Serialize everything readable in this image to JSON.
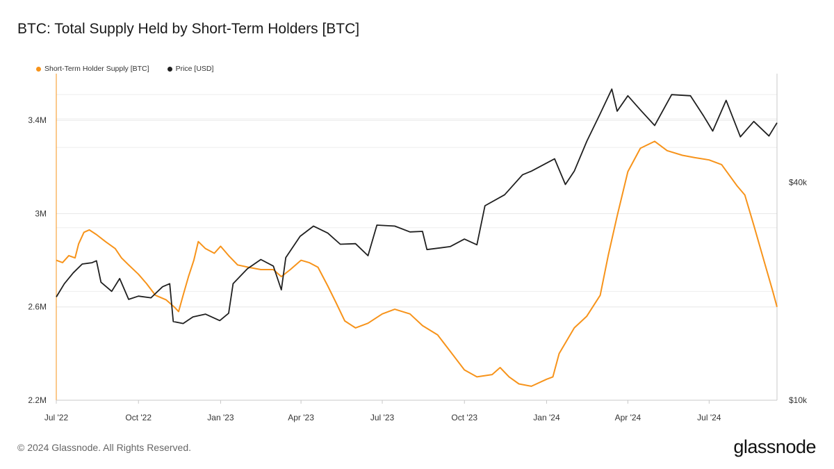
{
  "title": "BTC: Total Supply Held by Short-Term Holders [BTC]",
  "footer": "© 2024 Glassnode. All Rights Reserved.",
  "brand": "glassnode",
  "colors": {
    "supply": "#f7931a",
    "price": "#1f1f1f",
    "grid": "#e6e6e6",
    "axis": "#c8c8c8"
  },
  "chart_data": {
    "type": "line",
    "title": "BTC: Total Supply Held by Short-Term Holders [BTC]",
    "legend_placement": "top-left",
    "grid": true,
    "x_ticks": [
      "Jul '22",
      "Oct '22",
      "Jan '23",
      "Apr '23",
      "Jul '23",
      "Oct '23",
      "Jan '24",
      "Apr '24",
      "Jul '24"
    ],
    "x_range": [
      "2022-07-01",
      "2024-09-15"
    ],
    "y_left": {
      "ticks": [
        "2.2M",
        "2.6M",
        "3M",
        "3.4M"
      ],
      "tick_values": [
        2200000,
        2600000,
        3000000,
        3400000
      ],
      "range": [
        2200000,
        3600000
      ]
    },
    "y_right": {
      "ticks": [
        "$10k",
        "$40k"
      ],
      "tick_values": [
        10000,
        40000
      ],
      "scale": "log",
      "range": [
        10000,
        80000
      ]
    },
    "series": [
      {
        "name": "Short-Term Holder Supply [BTC]",
        "axis": "left",
        "points": [
          [
            "2022-07-01",
            2800000
          ],
          [
            "2022-07-08",
            2790000
          ],
          [
            "2022-07-15",
            2820000
          ],
          [
            "2022-07-22",
            2810000
          ],
          [
            "2022-07-26",
            2870000
          ],
          [
            "2022-08-01",
            2920000
          ],
          [
            "2022-08-07",
            2930000
          ],
          [
            "2022-08-15",
            2910000
          ],
          [
            "2022-08-25",
            2880000
          ],
          [
            "2022-09-05",
            2850000
          ],
          [
            "2022-09-12",
            2810000
          ],
          [
            "2022-09-20",
            2780000
          ],
          [
            "2022-10-01",
            2740000
          ],
          [
            "2022-10-10",
            2700000
          ],
          [
            "2022-10-20",
            2650000
          ],
          [
            "2022-11-01",
            2630000
          ],
          [
            "2022-11-10",
            2600000
          ],
          [
            "2022-11-15",
            2580000
          ],
          [
            "2022-11-20",
            2650000
          ],
          [
            "2022-11-26",
            2730000
          ],
          [
            "2022-12-02",
            2800000
          ],
          [
            "2022-12-07",
            2880000
          ],
          [
            "2022-12-15",
            2850000
          ],
          [
            "2022-12-25",
            2830000
          ],
          [
            "2023-01-01",
            2860000
          ],
          [
            "2023-01-10",
            2820000
          ],
          [
            "2023-01-20",
            2780000
          ],
          [
            "2023-02-01",
            2770000
          ],
          [
            "2023-02-15",
            2760000
          ],
          [
            "2023-03-01",
            2760000
          ],
          [
            "2023-03-10",
            2730000
          ],
          [
            "2023-03-20",
            2760000
          ],
          [
            "2023-04-01",
            2800000
          ],
          [
            "2023-04-10",
            2790000
          ],
          [
            "2023-04-20",
            2770000
          ],
          [
            "2023-05-01",
            2690000
          ],
          [
            "2023-05-10",
            2620000
          ],
          [
            "2023-05-20",
            2540000
          ],
          [
            "2023-06-01",
            2510000
          ],
          [
            "2023-06-15",
            2530000
          ],
          [
            "2023-07-01",
            2570000
          ],
          [
            "2023-07-15",
            2590000
          ],
          [
            "2023-08-01",
            2570000
          ],
          [
            "2023-08-15",
            2520000
          ],
          [
            "2023-09-01",
            2480000
          ],
          [
            "2023-09-15",
            2410000
          ],
          [
            "2023-10-01",
            2330000
          ],
          [
            "2023-10-15",
            2300000
          ],
          [
            "2023-11-01",
            2310000
          ],
          [
            "2023-11-10",
            2340000
          ],
          [
            "2023-11-20",
            2300000
          ],
          [
            "2023-12-01",
            2270000
          ],
          [
            "2023-12-15",
            2260000
          ],
          [
            "2024-01-01",
            2290000
          ],
          [
            "2024-01-08",
            2300000
          ],
          [
            "2024-01-15",
            2400000
          ],
          [
            "2024-02-01",
            2510000
          ],
          [
            "2024-02-15",
            2560000
          ],
          [
            "2024-03-01",
            2650000
          ],
          [
            "2024-03-10",
            2820000
          ],
          [
            "2024-03-20",
            2990000
          ],
          [
            "2024-04-01",
            3180000
          ],
          [
            "2024-04-15",
            3280000
          ],
          [
            "2024-05-01",
            3310000
          ],
          [
            "2024-05-15",
            3270000
          ],
          [
            "2024-06-01",
            3250000
          ],
          [
            "2024-06-15",
            3240000
          ],
          [
            "2024-07-01",
            3230000
          ],
          [
            "2024-07-15",
            3210000
          ],
          [
            "2024-08-01",
            3120000
          ],
          [
            "2024-08-10",
            3080000
          ],
          [
            "2024-08-20",
            2950000
          ],
          [
            "2024-09-01",
            2790000
          ],
          [
            "2024-09-10",
            2670000
          ],
          [
            "2024-09-15",
            2600000
          ]
        ]
      },
      {
        "name": "Price [USD]",
        "axis": "right",
        "points": [
          [
            "2022-07-01",
            19300
          ],
          [
            "2022-07-10",
            21000
          ],
          [
            "2022-07-20",
            22500
          ],
          [
            "2022-07-30",
            23800
          ],
          [
            "2022-08-10",
            24000
          ],
          [
            "2022-08-15",
            24300
          ],
          [
            "2022-08-20",
            21200
          ],
          [
            "2022-09-01",
            20000
          ],
          [
            "2022-09-10",
            21700
          ],
          [
            "2022-09-20",
            19000
          ],
          [
            "2022-10-01",
            19400
          ],
          [
            "2022-10-15",
            19200
          ],
          [
            "2022-10-28",
            20600
          ],
          [
            "2022-11-05",
            21000
          ],
          [
            "2022-11-09",
            16500
          ],
          [
            "2022-11-20",
            16300
          ],
          [
            "2022-12-01",
            17000
          ],
          [
            "2022-12-15",
            17300
          ],
          [
            "2022-12-31",
            16600
          ],
          [
            "2023-01-10",
            17400
          ],
          [
            "2023-01-15",
            21000
          ],
          [
            "2023-01-31",
            23100
          ],
          [
            "2023-02-15",
            24500
          ],
          [
            "2023-03-01",
            23500
          ],
          [
            "2023-03-10",
            20200
          ],
          [
            "2023-03-15",
            24800
          ],
          [
            "2023-03-31",
            28400
          ],
          [
            "2023-04-15",
            30300
          ],
          [
            "2023-05-01",
            29000
          ],
          [
            "2023-05-15",
            27000
          ],
          [
            "2023-06-01",
            27100
          ],
          [
            "2023-06-15",
            25100
          ],
          [
            "2023-06-25",
            30500
          ],
          [
            "2023-07-15",
            30300
          ],
          [
            "2023-08-01",
            29200
          ],
          [
            "2023-08-15",
            29300
          ],
          [
            "2023-08-20",
            26100
          ],
          [
            "2023-09-15",
            26600
          ],
          [
            "2023-10-01",
            27900
          ],
          [
            "2023-10-15",
            26900
          ],
          [
            "2023-10-24",
            34500
          ],
          [
            "2023-11-15",
            37000
          ],
          [
            "2023-12-05",
            42000
          ],
          [
            "2023-12-15",
            43000
          ],
          [
            "2024-01-10",
            46500
          ],
          [
            "2024-01-22",
            39500
          ],
          [
            "2024-02-01",
            43000
          ],
          [
            "2024-02-15",
            52000
          ],
          [
            "2024-03-01",
            62000
          ],
          [
            "2024-03-14",
            72500
          ],
          [
            "2024-03-20",
            63000
          ],
          [
            "2024-04-01",
            69500
          ],
          [
            "2024-04-15",
            63500
          ],
          [
            "2024-05-01",
            57500
          ],
          [
            "2024-05-20",
            70000
          ],
          [
            "2024-06-10",
            69500
          ],
          [
            "2024-06-25",
            61000
          ],
          [
            "2024-07-05",
            55500
          ],
          [
            "2024-07-20",
            67500
          ],
          [
            "2024-08-05",
            53500
          ],
          [
            "2024-08-20",
            59000
          ],
          [
            "2024-09-06",
            53800
          ],
          [
            "2024-09-15",
            58500
          ]
        ]
      }
    ]
  }
}
